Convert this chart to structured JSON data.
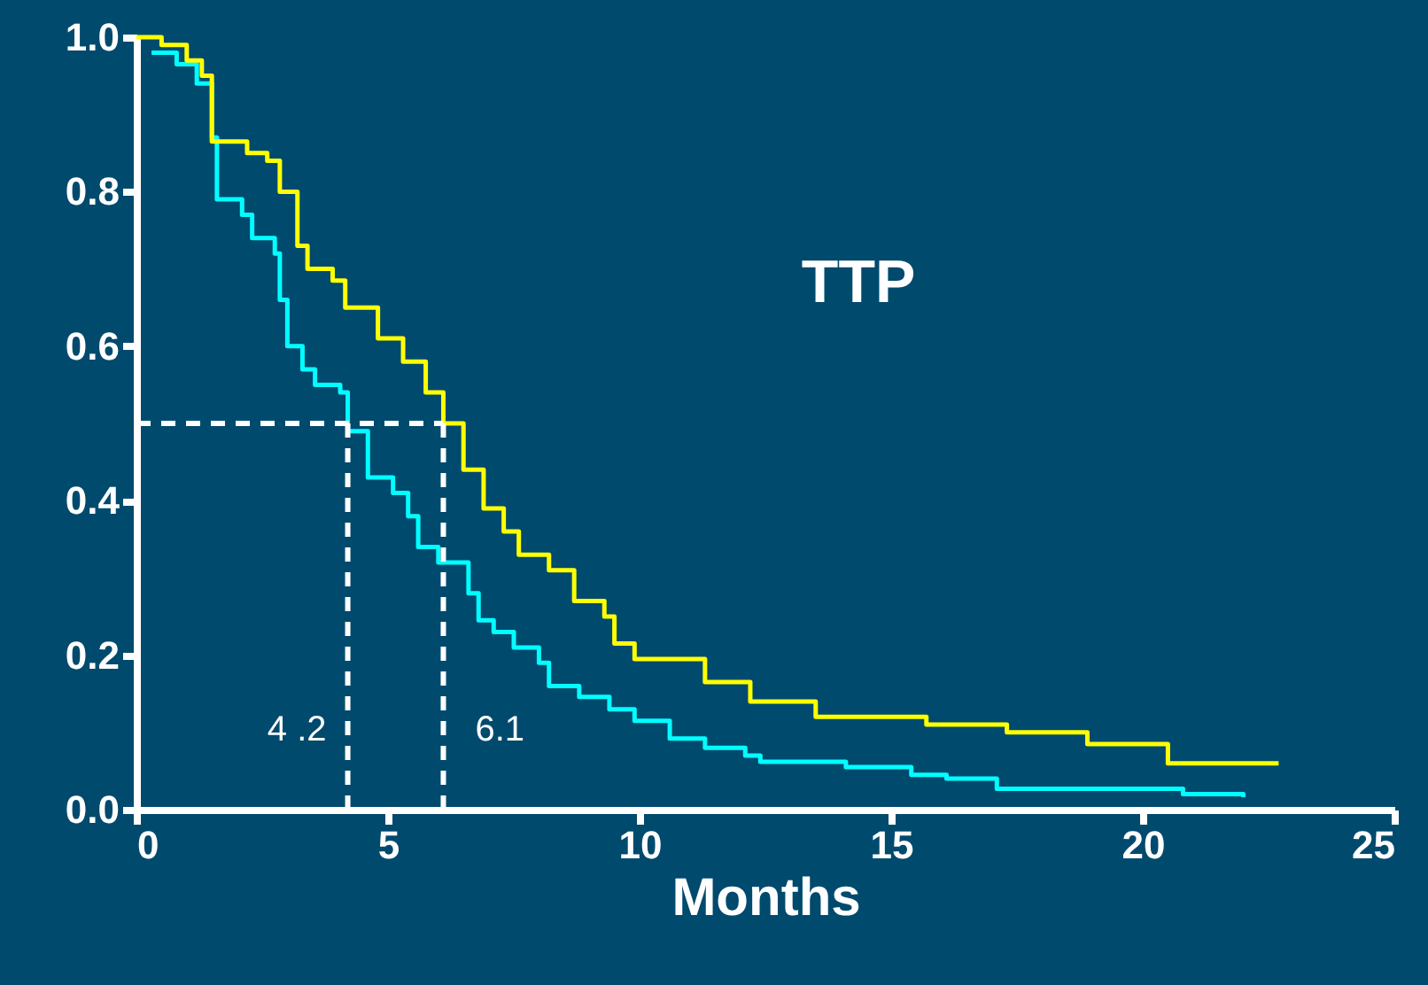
{
  "chart_data": {
    "type": "step",
    "xlabel": "Months",
    "annotations": [
      "TTP"
    ],
    "xlim": [
      0,
      25
    ],
    "xticks": [
      0,
      5,
      10,
      15,
      20,
      25
    ],
    "ylim": [
      0,
      1
    ],
    "yticks": [
      {
        "value": 0,
        "label": "0.0"
      },
      {
        "value": 0.2,
        "label": "0.2"
      },
      {
        "value": 0.4,
        "label": "0.4"
      },
      {
        "value": 0.6,
        "label": "0.6"
      },
      {
        "value": 0.8,
        "label": "0.8"
      },
      {
        "value": 1,
        "label": "1.0"
      }
    ],
    "grid": false,
    "marker": "none",
    "line_style": "solid",
    "ref_lines": [
      {
        "axis": "y",
        "value": 0.5,
        "label": null,
        "color": "#ffffff",
        "line_style": "dashed"
      },
      {
        "axis": "x",
        "value": 4.2,
        "label": "4 .2",
        "color": "#ffffff",
        "line_style": "dashed"
      },
      {
        "axis": "x",
        "value": 6.1,
        "label": "6.1",
        "color": "#ffffff",
        "line_style": "dashed"
      }
    ],
    "series": [
      {
        "color": "#ffff00",
        "x": [
          0,
          0.5,
          1,
          1.3,
          1.5,
          2.2,
          2.6,
          2.85,
          3.2,
          3.4,
          3.9,
          4.15,
          4.8,
          5.3,
          5.75,
          6.1,
          6.5,
          6.9,
          7.3,
          7.6,
          8.2,
          8.7,
          9.3,
          9.5,
          9.9,
          11.3,
          12.2,
          13.5,
          15.7,
          17.3,
          18.9,
          20.5,
          22.7
        ],
        "values": [
          1.0,
          0.99,
          0.97,
          0.95,
          0.865,
          0.85,
          0.84,
          0.8,
          0.73,
          0.7,
          0.685,
          0.65,
          0.61,
          0.58,
          0.54,
          0.5,
          0.44,
          0.39,
          0.36,
          0.33,
          0.31,
          0.27,
          0.25,
          0.215,
          0.195,
          0.165,
          0.14,
          0.12,
          0.11,
          0.1,
          0.085,
          0.06,
          0.06
        ]
      },
      {
        "color": "#00ffff",
        "x": [
          0.3,
          0.8,
          1.2,
          1.5,
          1.6,
          2.1,
          2.3,
          2.75,
          2.85,
          3.0,
          3.3,
          3.55,
          4.05,
          4.2,
          4.6,
          5.1,
          5.4,
          5.6,
          6.0,
          6.6,
          6.8,
          7.1,
          7.5,
          8.0,
          8.2,
          8.8,
          9.4,
          9.9,
          10.6,
          11.3,
          12.1,
          12.4,
          14.1,
          15.4,
          16.1,
          17.1,
          20.8,
          22.0
        ],
        "values": [
          0.98,
          0.965,
          0.94,
          0.87,
          0.79,
          0.77,
          0.74,
          0.72,
          0.66,
          0.6,
          0.57,
          0.55,
          0.54,
          0.49,
          0.43,
          0.41,
          0.38,
          0.34,
          0.32,
          0.28,
          0.245,
          0.23,
          0.21,
          0.19,
          0.16,
          0.146,
          0.13,
          0.115,
          0.092,
          0.08,
          0.07,
          0.062,
          0.055,
          0.045,
          0.04,
          0.027,
          0.02,
          0.016
        ]
      }
    ]
  }
}
